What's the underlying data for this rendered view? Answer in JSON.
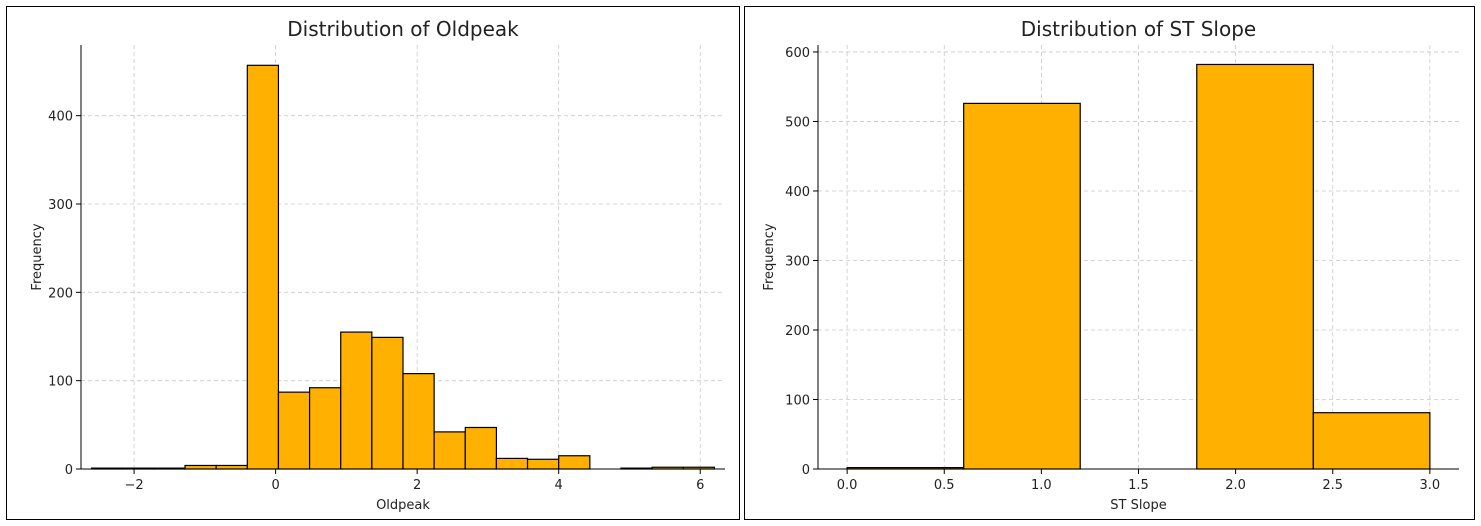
{
  "charts": [
    {
      "type": "bar",
      "title": "Distribution of Oldpeak",
      "xlabel": "Oldpeak",
      "ylabel": "Frequency",
      "xlim": [
        -2.75,
        6.35
      ],
      "ylim": [
        0,
        480
      ],
      "xticks": [
        -2,
        0,
        2,
        4,
        6
      ],
      "xtick_labels": [
        "−2",
        "0",
        "2",
        "4",
        "6"
      ],
      "yticks": [
        0,
        100,
        200,
        300,
        400
      ],
      "grid": true,
      "bin_edges": [
        -2.6,
        -2.16,
        -1.72,
        -1.28,
        -0.84,
        -0.4,
        0.04,
        0.48,
        0.92,
        1.36,
        1.8,
        2.24,
        2.68,
        3.12,
        3.56,
        4.0,
        4.44,
        4.88,
        5.32,
        5.76,
        6.2
      ],
      "values": [
        1,
        1,
        1,
        4,
        4,
        457,
        87,
        92,
        155,
        149,
        108,
        42,
        47,
        12,
        11,
        15,
        0,
        1,
        2,
        2
      ],
      "color": "#ffb000"
    },
    {
      "type": "bar",
      "title": "Distribution of ST Slope",
      "xlabel": "ST Slope",
      "ylabel": "Frequency",
      "xlim": [
        -0.15,
        3.15
      ],
      "ylim": [
        0,
        610
      ],
      "xticks": [
        0,
        0.5,
        1,
        1.5,
        2,
        2.5,
        3
      ],
      "xtick_labels": [
        "0.0",
        "0.5",
        "1.0",
        "1.5",
        "2.0",
        "2.5",
        "3.0"
      ],
      "yticks": [
        0,
        100,
        200,
        300,
        400,
        500,
        600
      ],
      "grid": true,
      "bin_edges": [
        0,
        0.6,
        1.2,
        1.8,
        2.4,
        3.0
      ],
      "values": [
        2,
        526,
        0,
        582,
        81
      ],
      "color": "#ffb000"
    }
  ]
}
